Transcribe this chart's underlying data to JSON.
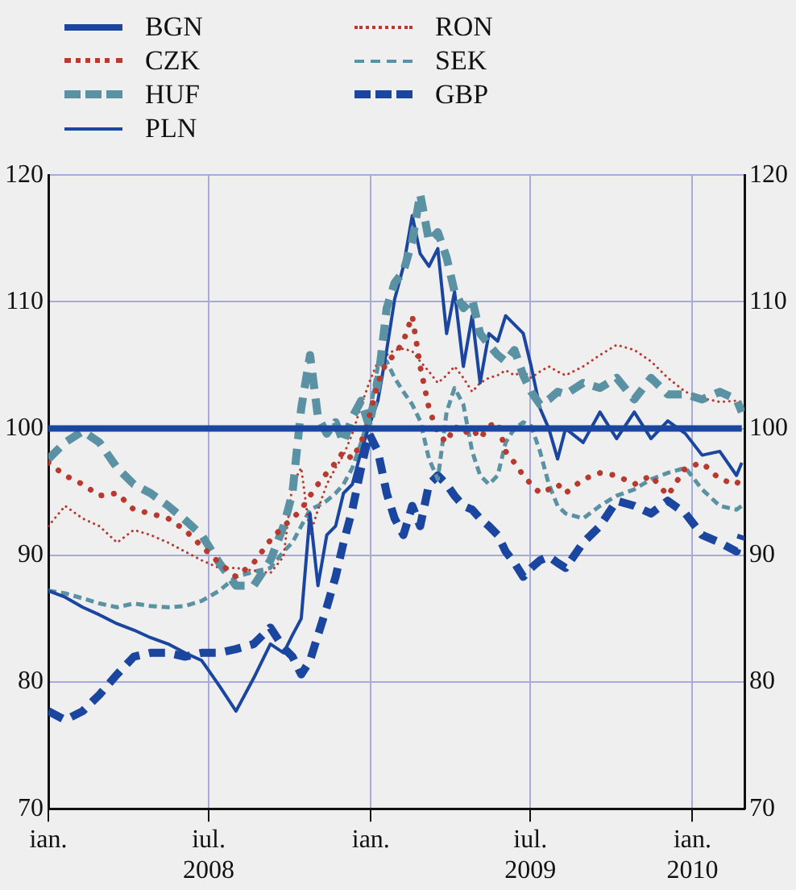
{
  "chart_data": {
    "type": "line",
    "x": [
      "2008-01-01",
      "2008-01-20",
      "2008-02-09",
      "2008-02-28",
      "2008-03-19",
      "2008-04-07",
      "2008-04-26",
      "2008-05-16",
      "2008-06-04",
      "2008-06-23",
      "2008-07-13",
      "2008-08-01",
      "2008-08-21",
      "2008-09-09",
      "2008-09-24",
      "2008-10-04",
      "2008-10-14",
      "2008-10-24",
      "2008-11-02",
      "2008-11-12",
      "2008-11-22",
      "2008-12-01",
      "2008-12-11",
      "2008-12-21",
      "2008-12-30",
      "2009-01-09",
      "2009-01-19",
      "2009-01-28",
      "2009-02-07",
      "2009-02-17",
      "2009-02-26",
      "2009-03-08",
      "2009-03-18",
      "2009-03-28",
      "2009-04-06",
      "2009-04-16",
      "2009-04-26",
      "2009-05-05",
      "2009-05-15",
      "2009-05-25",
      "2009-06-03",
      "2009-06-13",
      "2009-06-23",
      "2009-07-02",
      "2009-07-12",
      "2009-07-22",
      "2009-08-01",
      "2009-08-10",
      "2009-08-30",
      "2009-09-18",
      "2009-10-07",
      "2009-10-27",
      "2009-11-15",
      "2009-12-04",
      "2009-12-24",
      "2010-01-12",
      "2010-02-01",
      "2010-02-20",
      "2010-02-26"
    ],
    "series": [
      {
        "name": "BGN",
        "color": "#1a46a0",
        "line_style": "solid",
        "x": [
          "2008-01-01",
          "2010-02-26"
        ],
        "values": [
          100,
          100
        ]
      },
      {
        "name": "CZK",
        "color": "#b83a2e",
        "line_style": "dotted",
        "values": [
          97.3,
          96.3,
          95.6,
          94.7,
          94.9,
          93.6,
          93.3,
          92.9,
          92,
          90.7,
          89.4,
          88.3,
          89.4,
          91.2,
          92.3,
          92.9,
          93.6,
          94.7,
          95.6,
          96.5,
          97.3,
          98.2,
          97.6,
          98.9,
          100.9,
          103.6,
          105.3,
          105.8,
          106.9,
          108.9,
          104.9,
          101.6,
          99.6,
          98.9,
          100.2,
          99.6,
          100,
          99.2,
          100.2,
          100.5,
          98.2,
          97.3,
          96.3,
          95.6,
          94.9,
          95.2,
          95.6,
          94.9,
          96,
          96.5,
          96.3,
          95.6,
          96.3,
          94.7,
          96.9,
          97.3,
          96,
          95.6,
          96.3
        ]
      },
      {
        "name": "HUF",
        "color": "#5b92a3",
        "line_style": "dashed",
        "values": [
          97.6,
          98.9,
          99.8,
          98.9,
          96.9,
          95.6,
          94.9,
          93.9,
          92.8,
          91.6,
          89.4,
          87.6,
          87.6,
          89.6,
          92.3,
          94.9,
          101.6,
          105.8,
          100.9,
          99.6,
          100.5,
          98.9,
          100.9,
          102.2,
          100.2,
          103.6,
          109.5,
          111.5,
          112.4,
          114.8,
          118.5,
          114.8,
          115.5,
          113.5,
          110.8,
          109.5,
          110.2,
          107.5,
          106.6,
          105.8,
          105.3,
          106.2,
          104.2,
          102.9,
          101.9,
          102.3,
          102.9,
          102.7,
          103.6,
          103.2,
          104,
          102.3,
          104,
          102.7,
          102.7,
          102.3,
          102.9,
          102.3,
          101.3
        ]
      },
      {
        "name": "PLN",
        "color": "#1a46a0",
        "line_style": "solid",
        "values": [
          87.2,
          86.7,
          85.9,
          85.3,
          84.6,
          84.1,
          83.5,
          83,
          82.3,
          81.7,
          79.7,
          77.7,
          80.3,
          83,
          82.3,
          83.7,
          85,
          93.3,
          87.6,
          91.6,
          92.3,
          94.9,
          95.6,
          98.2,
          100.2,
          102.2,
          106.2,
          110.2,
          112.8,
          116.8,
          113.8,
          112.8,
          114.2,
          107.5,
          110.8,
          104.9,
          108.9,
          103.6,
          107.5,
          106.9,
          108.9,
          108.2,
          107.5,
          104.9,
          101.6,
          100,
          97.6,
          100,
          98.9,
          101.3,
          99.2,
          101.3,
          99.2,
          100.6,
          99.6,
          97.9,
          98.2,
          96.3,
          97.3
        ]
      },
      {
        "name": "RON",
        "color": "#b83a2e",
        "line_style": "dotted",
        "values": [
          92.3,
          93.9,
          92.9,
          92.3,
          91,
          92,
          91.6,
          91,
          90.3,
          89.6,
          89,
          89,
          88.8,
          88.6,
          89.9,
          95.6,
          96.9,
          91.6,
          93.6,
          95.6,
          96.9,
          97.9,
          99.6,
          101.8,
          103.6,
          105.3,
          105.8,
          106.2,
          106.3,
          106.1,
          105.3,
          104.5,
          103.6,
          104.2,
          104.9,
          104,
          102.9,
          103.6,
          104,
          104.2,
          104.6,
          104.2,
          104.5,
          104,
          104.5,
          104.9,
          104.5,
          104.2,
          104.9,
          105.8,
          106.6,
          106.2,
          105.3,
          104,
          102.9,
          102.4,
          102.1,
          102.2,
          102.1
        ]
      },
      {
        "name": "SEK",
        "color": "#5b92a3",
        "line_style": "dashed",
        "values": [
          87.2,
          87,
          86.6,
          86.2,
          85.9,
          86.2,
          86,
          85.9,
          86,
          86.4,
          87.2,
          88.3,
          88.7,
          89,
          90.3,
          91,
          92.3,
          93.6,
          93.9,
          94.3,
          94.9,
          95.6,
          96.9,
          98.9,
          100.9,
          104.9,
          105.3,
          104,
          102.9,
          101.9,
          100.6,
          97.6,
          96,
          101.3,
          103.2,
          101.9,
          98.2,
          96.3,
          95.6,
          96.3,
          98.9,
          100,
          100.5,
          100.2,
          98.2,
          95.6,
          93.9,
          93.3,
          92.9,
          93.9,
          94.7,
          95.2,
          96,
          96.5,
          96.9,
          95.2,
          93.9,
          93.6,
          93.9
        ]
      },
      {
        "name": "GBP",
        "color": "#1a46a0",
        "line_style": "dashed",
        "values": [
          77.7,
          77,
          77.7,
          79,
          80.6,
          82,
          82.3,
          82.3,
          82,
          82.3,
          82.3,
          82.6,
          83,
          84.3,
          82.7,
          82,
          80.6,
          81.7,
          83.7,
          85.9,
          88.3,
          91,
          93.6,
          96.9,
          99.6,
          98.2,
          94.9,
          92.9,
          91.6,
          93.9,
          92.3,
          95.6,
          96.3,
          95.6,
          94.7,
          93.9,
          93.6,
          92.9,
          92.3,
          91.6,
          90.3,
          89.4,
          88.3,
          89,
          89.6,
          89.9,
          89.4,
          89,
          91,
          92.3,
          94.3,
          93.9,
          93.3,
          94.3,
          93.3,
          91.6,
          91,
          90.3,
          91.6
        ]
      }
    ],
    "xlim": [
      "2008-01-01",
      "2010-03-01"
    ],
    "xticks": [
      {
        "value": "2008-01-01",
        "label": "ian."
      },
      {
        "value": "2008-07-01",
        "label": "iul.\n2008"
      },
      {
        "value": "2009-01-01",
        "label": "ian."
      },
      {
        "value": "2009-07-01",
        "label": "iul.\n2009"
      },
      {
        "value": "2010-01-01",
        "label": "ian.\n2010"
      }
    ],
    "ylim": [
      70,
      120
    ],
    "yticks": [
      70,
      80,
      90,
      100,
      110,
      120
    ],
    "y2lim": [
      70,
      120
    ],
    "y2ticks": [
      70,
      80,
      90,
      100,
      110,
      120
    ],
    "grid": true,
    "legend": "top left"
  }
}
